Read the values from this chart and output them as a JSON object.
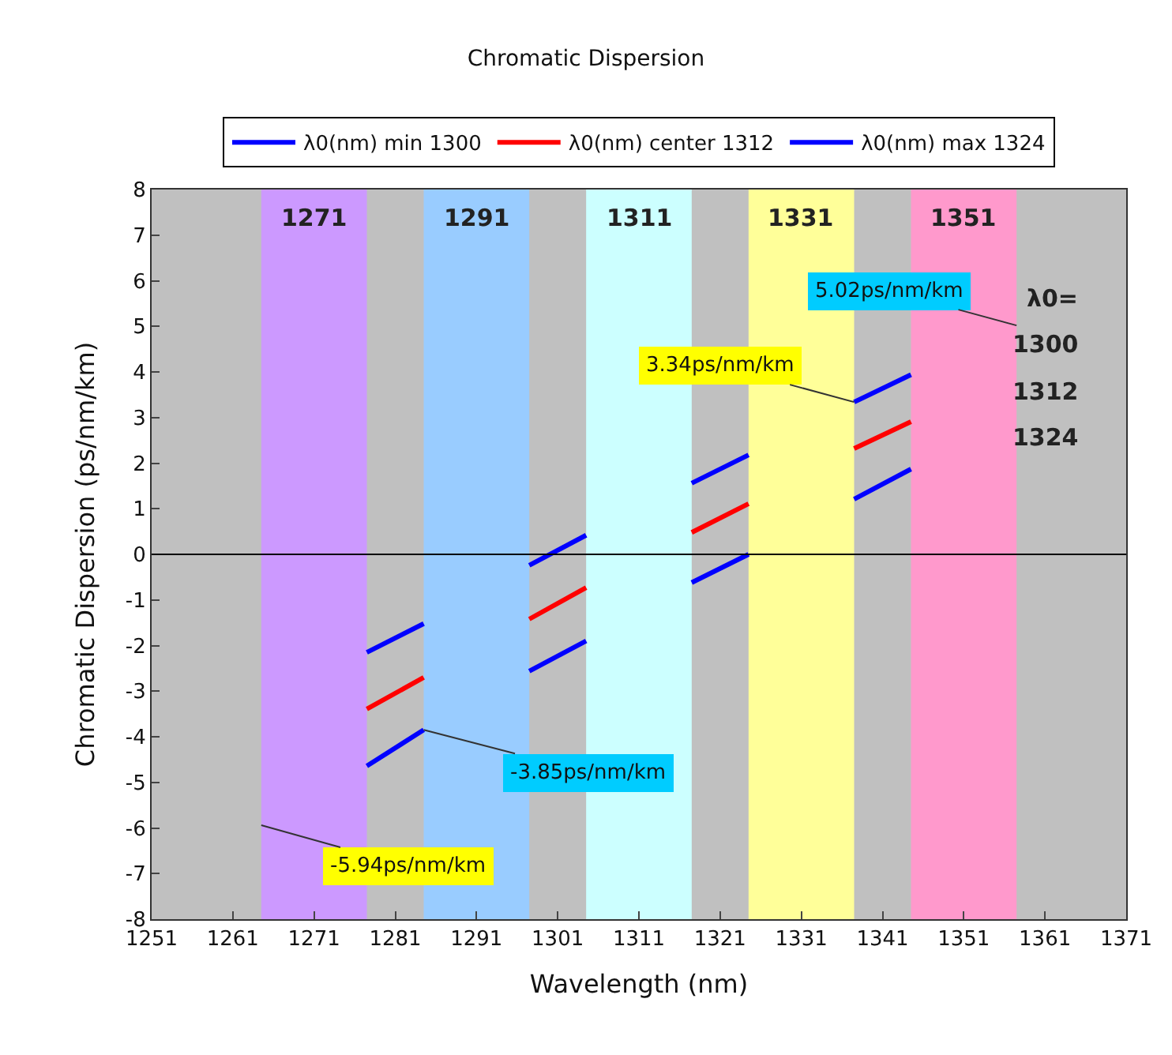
{
  "chart_data": {
    "type": "line",
    "title": "Chromatic Dispersion",
    "xlabel": "Wavelength (nm)",
    "ylabel": "Chromatic Dispersion (ps/nm/km)",
    "x": [
      1277.5,
      1284.5,
      1291,
      1297.5,
      1304.5,
      1311,
      1317.5,
      1324.5,
      1331,
      1337.5,
      1344.5
    ],
    "series": [
      {
        "name": "λ0(nm) min 1300",
        "color": "#0000ff",
        "values": [
          -2.15,
          -1.52,
          null,
          -0.24,
          0.42,
          null,
          1.56,
          2.18,
          null,
          3.34,
          3.94
        ]
      },
      {
        "name": "λ0(nm) center 1312",
        "color": "#ff0000",
        "values": [
          -3.39,
          -2.7,
          null,
          -1.42,
          -0.73,
          null,
          0.48,
          1.11,
          null,
          2.32,
          2.91
        ]
      },
      {
        "name": "λ0(nm) max 1324",
        "color": "#0000ff",
        "values": [
          -4.64,
          -3.85,
          null,
          -2.56,
          -1.9,
          null,
          -0.62,
          0.0,
          null,
          1.21,
          1.87
        ]
      }
    ],
    "bands": [
      {
        "axis": "x",
        "from": 1264.5,
        "to": 1277.5,
        "label": "1271",
        "color": "#cc99ff"
      },
      {
        "axis": "x",
        "from": 1284.5,
        "to": 1297.5,
        "label": "1291",
        "color": "#99ccff"
      },
      {
        "axis": "x",
        "from": 1304.5,
        "to": 1317.5,
        "label": "1311",
        "color": "#ccffff"
      },
      {
        "axis": "x",
        "from": 1324.5,
        "to": 1337.5,
        "label": "1331",
        "color": "#ffff99"
      },
      {
        "axis": "x",
        "from": 1344.5,
        "to": 1357.5,
        "label": "1351",
        "color": "#ff99cc"
      }
    ],
    "ref_lines": [
      {
        "axis": "y",
        "value": 0,
        "color": "#000000"
      }
    ],
    "annotations": [
      {
        "text": "-5.94ps/nm/km",
        "x": 1264.5,
        "y": -5.94
      },
      {
        "text": "-3.85ps/nm/km",
        "x": 1284.5,
        "y": -3.85
      },
      {
        "text": "3.34ps/nm/km",
        "x": 1337.5,
        "y": 3.34
      },
      {
        "text": "5.02ps/nm/km",
        "x": 1357.5,
        "y": 5.02
      },
      "λ0=",
      "1300",
      "1312",
      "1324"
    ],
    "xlim": [
      1251,
      1371
    ],
    "xticks": [
      1251,
      1261,
      1271,
      1281,
      1291,
      1301,
      1311,
      1321,
      1331,
      1341,
      1351,
      1361,
      1371
    ],
    "ylim": [
      -8,
      8
    ],
    "yticks": [
      -8,
      -7,
      -6,
      -5,
      -4,
      -3,
      -2,
      -1,
      0,
      1,
      2,
      3,
      4,
      5,
      6,
      7,
      8
    ],
    "grid": false,
    "legend": "top",
    "marker": "none",
    "line_style": "solid"
  }
}
